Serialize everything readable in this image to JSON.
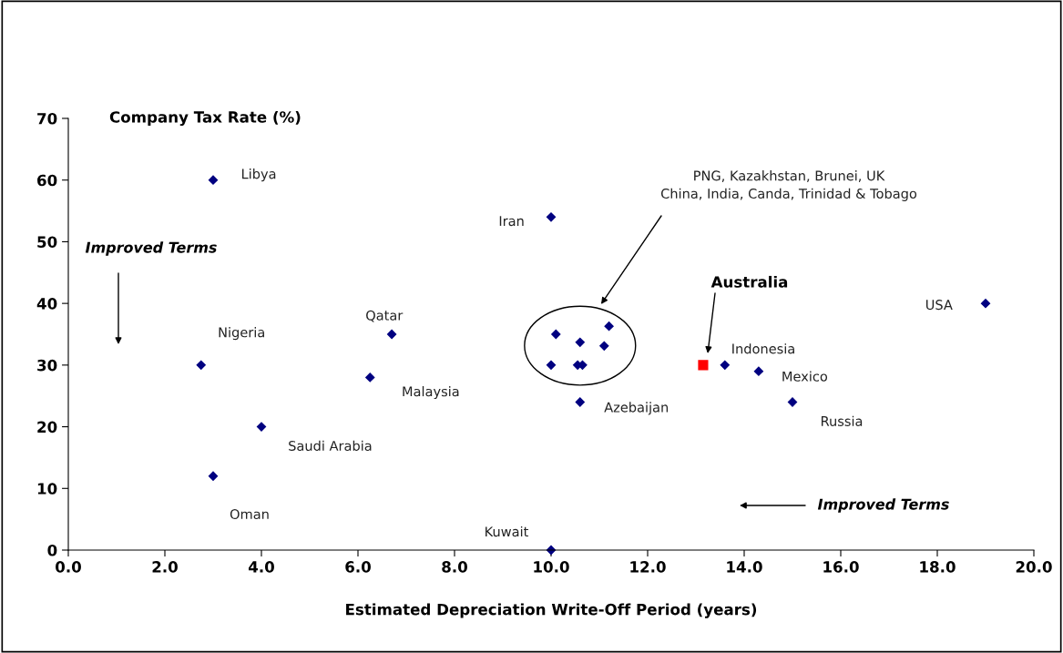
{
  "chart_data": {
    "type": "scatter",
    "ylabel": "Company Tax Rate (%)",
    "xlabel": "Estimated Depreciation Write-Off Period (years)",
    "xlim": [
      0,
      20
    ],
    "ylim": [
      0,
      70
    ],
    "xticks": [
      {
        "value": 0,
        "label": "0.0"
      },
      {
        "value": 2,
        "label": "2.0"
      },
      {
        "value": 4,
        "label": "4.0"
      },
      {
        "value": 6,
        "label": "6.0"
      },
      {
        "value": 8,
        "label": "8.0"
      },
      {
        "value": 10,
        "label": "10.0"
      },
      {
        "value": 12,
        "label": "12.0"
      },
      {
        "value": 14,
        "label": "14.0"
      },
      {
        "value": 16,
        "label": "16.0"
      },
      {
        "value": 18,
        "label": "18.0"
      },
      {
        "value": 20,
        "label": "20.0"
      }
    ],
    "yticks": [
      0,
      10,
      20,
      30,
      40,
      50,
      60,
      70
    ],
    "grid": false,
    "series": [
      {
        "color": "#000080",
        "marker": "diamond",
        "x": [
          3.0,
          10.0,
          19.0,
          6.7,
          2.75,
          6.25,
          4.0,
          3.0,
          10.0,
          10.6,
          13.6,
          14.3,
          15.0
        ],
        "values": [
          60,
          54,
          40,
          35,
          30,
          28,
          20,
          12,
          0,
          24,
          30,
          29,
          24
        ]
      },
      {
        "color": "#000080",
        "marker": "diamond",
        "x": [
          10.1,
          10.6,
          11.2,
          11.1,
          10.0,
          10.55,
          10.65
        ],
        "values": [
          35,
          33.7,
          36.3,
          33.1,
          30,
          30,
          30
        ]
      },
      {
        "color": "#ff0000",
        "marker": "square",
        "x": [
          13.15
        ],
        "values": [
          30
        ]
      }
    ],
    "annotations": [
      {
        "text": "Libya",
        "x": 3.0,
        "y": 60
      },
      {
        "text": "Iran",
        "x": 10.0,
        "y": 54
      },
      {
        "text": "USA",
        "x": 19.0,
        "y": 40
      },
      {
        "text": "Qatar",
        "x": 6.7,
        "y": 35
      },
      {
        "text": "Nigeria",
        "x": 2.75,
        "y": 30
      },
      {
        "text": "Malaysia",
        "x": 6.25,
        "y": 28
      },
      {
        "text": "Saudi Arabia",
        "x": 4.0,
        "y": 20
      },
      {
        "text": "Oman",
        "x": 3.0,
        "y": 12
      },
      {
        "text": "Azebaijan",
        "x": 10.6,
        "y": 24
      },
      {
        "text": "Indonesia",
        "x": 13.6,
        "y": 30
      },
      {
        "text": "Mexico",
        "x": 14.3,
        "y": 29
      },
      {
        "text": "Russia",
        "x": 15.0,
        "y": 24
      },
      "Kuwait",
      "Australia",
      "PNG, Kazakhstan, Brunei, UK\nChina, India, Canda, Trinidad & Tobago",
      "Improved Terms",
      "Improved Terms"
    ]
  }
}
